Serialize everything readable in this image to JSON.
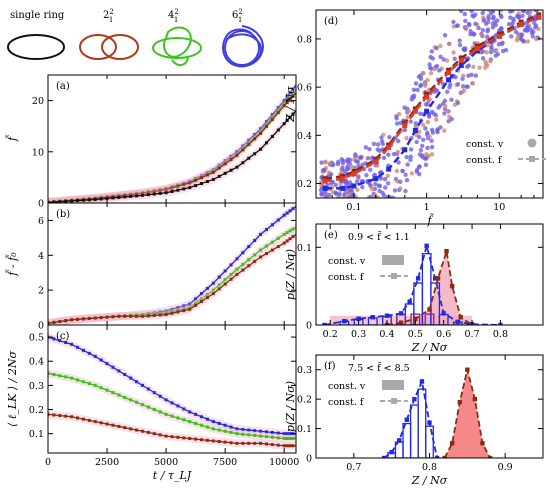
{
  "colors": {
    "black": "#111111",
    "brown": "#8b2c12",
    "green": "#36c21a",
    "blue": "#1f29e0",
    "red": "#e03a2a",
    "violet": "#6f5fe6",
    "pink": "#f2a9bd",
    "lightred": "#f26b6b",
    "gray": "#a9a9a9",
    "salmon": "#cf8a72"
  },
  "rings": [
    {
      "label": "single ring",
      "color": "#111111"
    },
    {
      "label": "2",
      "sup": "2",
      "sub": "1",
      "color": "#b03a1c"
    },
    {
      "label": "4",
      "sup": "2",
      "sub": "1",
      "color": "#3fc41f"
    },
    {
      "label": "6",
      "sup": "2",
      "sub": "1",
      "color": "#3f3fe0"
    }
  ],
  "chart_data": [
    {
      "id": "a",
      "panel_label": "(a)",
      "type": "line",
      "ylabel": "f̃",
      "ylim": [
        0,
        25
      ],
      "yticks": [
        "0",
        "10",
        "20"
      ],
      "ytick_values": [
        0,
        10,
        20
      ],
      "xlim": [
        0,
        10500
      ],
      "series": [
        {
          "color": "#1f29e0",
          "x": [
            0,
            1000,
            2000,
            3000,
            4000,
            5000,
            6000,
            7000,
            8000,
            9000,
            10000,
            10500
          ],
          "values": [
            0.2,
            0.6,
            1.0,
            1.5,
            2.0,
            2.8,
            4.2,
            6.5,
            10.0,
            14.5,
            20.0,
            23.0
          ]
        },
        {
          "color": "#36c21a",
          "x": [
            0,
            1000,
            2000,
            3000,
            4000,
            5000,
            6000,
            7000,
            8000,
            9000,
            10000,
            10500
          ],
          "values": [
            0.2,
            0.6,
            1.0,
            1.5,
            2.0,
            2.7,
            4.0,
            6.2,
            9.5,
            14.0,
            19.5,
            22.0
          ]
        },
        {
          "color": "#8b2c12",
          "x": [
            0,
            1000,
            2000,
            3000,
            4000,
            5000,
            6000,
            7000,
            8000,
            9000,
            10000,
            10500
          ],
          "values": [
            0.2,
            0.5,
            0.9,
            1.4,
            1.9,
            2.6,
            3.9,
            6.0,
            9.3,
            13.6,
            19.0,
            21.5
          ]
        },
        {
          "color": "#111111",
          "x": [
            0,
            1000,
            2000,
            3000,
            4000,
            5000,
            6000,
            7000,
            8000,
            9000,
            10000,
            10500
          ],
          "values": [
            0.1,
            0.4,
            0.7,
            1.1,
            1.5,
            2.0,
            3.0,
            4.6,
            7.0,
            10.5,
            15.5,
            18.0
          ]
        }
      ]
    },
    {
      "id": "b",
      "panel_label": "(b)",
      "type": "line",
      "ylabel": "f̃ - f̃₀",
      "ylim": [
        0,
        7
      ],
      "yticks": [
        "0",
        "2",
        "4",
        "6"
      ],
      "ytick_values": [
        0,
        2,
        4,
        6
      ],
      "xlim": [
        0,
        10500
      ],
      "series": [
        {
          "color": "#1f29e0",
          "x": [
            0,
            1000,
            2000,
            3000,
            4000,
            5000,
            6000,
            7000,
            8000,
            9000,
            10000,
            10500
          ],
          "values": [
            0.1,
            0.3,
            0.4,
            0.5,
            0.6,
            0.8,
            1.2,
            2.4,
            3.8,
            5.2,
            6.3,
            6.8
          ]
        },
        {
          "color": "#36c21a",
          "x": [
            0,
            1000,
            2000,
            3000,
            4000,
            5000,
            6000,
            7000,
            8000,
            9000,
            10000,
            10500
          ],
          "values": [
            0.1,
            0.3,
            0.4,
            0.5,
            0.6,
            0.7,
            1.0,
            2.0,
            3.2,
            4.3,
            5.2,
            5.6
          ]
        },
        {
          "color": "#8b2c12",
          "x": [
            0,
            1000,
            2000,
            3000,
            4000,
            5000,
            6000,
            7000,
            8000,
            9000,
            10000,
            10500
          ],
          "values": [
            0.1,
            0.3,
            0.4,
            0.5,
            0.5,
            0.6,
            0.9,
            1.8,
            2.9,
            3.9,
            4.7,
            5.2
          ]
        }
      ]
    },
    {
      "id": "c",
      "panel_label": "(c)",
      "type": "line",
      "ylabel": "⟨ ℓ_LK ⟩ / 2Nσ",
      "ylim": [
        0.02,
        0.55
      ],
      "yticks": [
        "0.1",
        "0.2",
        "0.3",
        "0.4",
        "0.5"
      ],
      "ytick_values": [
        0.1,
        0.2,
        0.3,
        0.4,
        0.5
      ],
      "xlim": [
        0,
        10500
      ],
      "xticks": [
        "0",
        "2500",
        "5000",
        "7500",
        "10000"
      ],
      "xtick_values": [
        0,
        2500,
        5000,
        7500,
        10000
      ],
      "xlabel": "t / τ_LJ",
      "series": [
        {
          "color": "#1f29e0",
          "x": [
            0,
            1000,
            2000,
            3000,
            4000,
            5000,
            6000,
            7000,
            8000,
            9000,
            10000,
            10500
          ],
          "values": [
            0.5,
            0.47,
            0.42,
            0.36,
            0.3,
            0.24,
            0.19,
            0.15,
            0.12,
            0.11,
            0.1,
            0.1
          ]
        },
        {
          "color": "#36c21a",
          "x": [
            0,
            1000,
            2000,
            3000,
            4000,
            5000,
            6000,
            7000,
            8000,
            9000,
            10000,
            10500
          ],
          "values": [
            0.35,
            0.33,
            0.3,
            0.26,
            0.22,
            0.18,
            0.15,
            0.12,
            0.1,
            0.09,
            0.08,
            0.08
          ]
        },
        {
          "color": "#8b2c12",
          "x": [
            0,
            1000,
            2000,
            3000,
            4000,
            5000,
            6000,
            7000,
            8000,
            9000,
            10000,
            10500
          ],
          "values": [
            0.18,
            0.17,
            0.15,
            0.13,
            0.11,
            0.09,
            0.08,
            0.07,
            0.06,
            0.06,
            0.05,
            0.05
          ]
        }
      ]
    },
    {
      "id": "d",
      "panel_label": "(d)",
      "type": "scatter",
      "ylabel": "Z / Nσ",
      "ylim": [
        0.14,
        0.92
      ],
      "yticks": [
        "0.2",
        "0.4",
        "0.6",
        "0.8"
      ],
      "ytick_values": [
        0.2,
        0.4,
        0.6,
        0.8
      ],
      "xscale": "log",
      "xlim": [
        0.03,
        40
      ],
      "xticks": [
        "0.1",
        "1",
        "10"
      ],
      "xtick_values": [
        0.1,
        1,
        10
      ],
      "xlabel": "f̃",
      "legend": [
        {
          "label": "const. v",
          "style": "dot"
        },
        {
          "label": "const. f",
          "style": "dashed-square"
        }
      ],
      "curves": [
        {
          "color": "#1f29e0",
          "x": [
            0.04,
            0.07,
            0.1,
            0.2,
            0.3,
            0.5,
            0.7,
            1,
            2,
            3,
            5,
            10,
            20,
            35
          ],
          "values": [
            0.18,
            0.18,
            0.19,
            0.22,
            0.26,
            0.34,
            0.42,
            0.5,
            0.63,
            0.69,
            0.75,
            0.81,
            0.86,
            0.89
          ]
        },
        {
          "color": "#8b2c12",
          "x": [
            0.04,
            0.07,
            0.1,
            0.2,
            0.3,
            0.5,
            0.7,
            1,
            2,
            3,
            5,
            10,
            20,
            35
          ],
          "values": [
            0.22,
            0.23,
            0.25,
            0.3,
            0.36,
            0.45,
            0.51,
            0.57,
            0.67,
            0.72,
            0.77,
            0.82,
            0.87,
            0.9
          ]
        },
        {
          "color": "#e03a2a",
          "x": [
            0.04,
            0.07,
            0.1,
            0.2,
            0.3,
            0.5,
            0.7,
            1,
            2,
            3,
            5,
            10,
            20,
            35
          ],
          "values": [
            0.21,
            0.22,
            0.24,
            0.29,
            0.35,
            0.44,
            0.5,
            0.56,
            0.66,
            0.71,
            0.76,
            0.81,
            0.86,
            0.89
          ]
        }
      ]
    },
    {
      "id": "e",
      "panel_label": "(e)",
      "type": "bar",
      "annotation": "0.9 < f̃ < 1.1",
      "ylabel": "p(Z / Nσ)",
      "ylim": [
        0,
        0.13
      ],
      "yticks": [
        "0",
        "0.1"
      ],
      "ytick_values": [
        0,
        0.1
      ],
      "xlim": [
        0.15,
        0.95
      ],
      "xticks": [
        "0.2",
        "0.3",
        "0.4",
        "0.5",
        "0.6",
        "0.7",
        "0.8"
      ],
      "xtick_values": [
        0.2,
        0.3,
        0.4,
        0.5,
        0.6,
        0.7,
        0.8
      ],
      "xlabel": "Z / Nσ",
      "legend": [
        {
          "label": "const. v",
          "style": "box"
        },
        {
          "label": "const. f",
          "style": "dashed-square"
        }
      ],
      "curves": [
        {
          "color": "#1f29e0",
          "x": [
            0.18,
            0.25,
            0.3,
            0.35,
            0.4,
            0.45,
            0.48,
            0.51,
            0.54,
            0.57,
            0.6,
            0.65,
            0.7,
            0.8
          ],
          "values": [
            0,
            0.005,
            0.008,
            0.01,
            0.012,
            0.015,
            0.03,
            0.06,
            0.102,
            0.06,
            0.015,
            0.004,
            0.001,
            0
          ]
        },
        {
          "color": "#8b2c12",
          "x": [
            0.4,
            0.45,
            0.5,
            0.55,
            0.58,
            0.61,
            0.63,
            0.66,
            0.7
          ],
          "values": [
            0,
            0.003,
            0.008,
            0.02,
            0.06,
            0.095,
            0.05,
            0.01,
            0
          ]
        }
      ]
    },
    {
      "id": "f",
      "panel_label": "(f)",
      "type": "bar",
      "annotation": "7.5 < f̃ < 8.5",
      "ylabel": "p(Z / Nσ)",
      "ylim": [
        0,
        0.35
      ],
      "yticks": [
        "0",
        "0.1",
        "0.2",
        "0.3"
      ],
      "ytick_values": [
        0,
        0.1,
        0.2,
        0.3
      ],
      "xlim": [
        0.65,
        0.95
      ],
      "xticks": [
        "0.7",
        "0.8",
        "0.9"
      ],
      "xtick_values": [
        0.7,
        0.8,
        0.9
      ],
      "xlabel": "Z / Nσ",
      "legend": [
        {
          "label": "const. v",
          "style": "box"
        },
        {
          "label": "const. f",
          "style": "dashed-square"
        }
      ],
      "curves": [
        {
          "color": "#1f29e0",
          "x": [
            0.74,
            0.75,
            0.76,
            0.77,
            0.78,
            0.79,
            0.8,
            0.81
          ],
          "values": [
            0,
            0.02,
            0.06,
            0.13,
            0.2,
            0.26,
            0.12,
            0
          ]
        },
        {
          "color": "#8b2c12",
          "x": [
            0.82,
            0.83,
            0.84,
            0.85,
            0.86,
            0.87,
            0.88
          ],
          "values": [
            0,
            0.05,
            0.19,
            0.3,
            0.2,
            0.05,
            0
          ]
        }
      ]
    }
  ]
}
